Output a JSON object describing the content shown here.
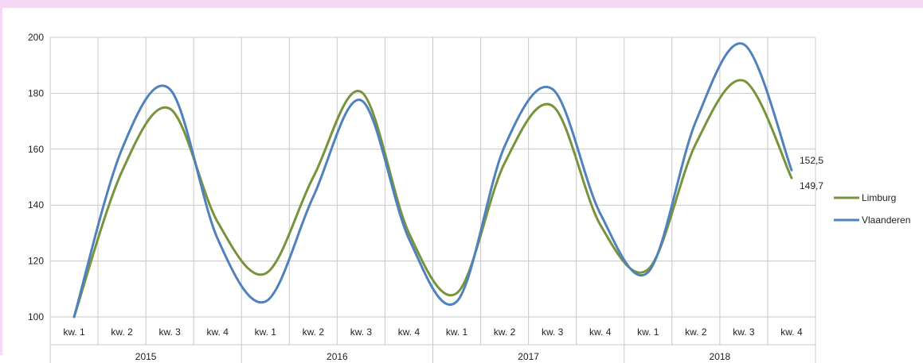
{
  "chart_data": {
    "type": "line",
    "title": "",
    "xlabel": "",
    "ylabel": "",
    "ylim": [
      100,
      200
    ],
    "yticks": [
      100,
      120,
      140,
      160,
      180,
      200
    ],
    "grid": true,
    "legend_position": "right",
    "categories": [
      "kw. 1",
      "kw. 2",
      "kw. 3",
      "kw. 4",
      "kw. 1",
      "kw. 2",
      "kw. 3",
      "kw. 4",
      "kw. 1",
      "kw. 2",
      "kw. 3",
      "kw. 4",
      "kw. 1",
      "kw. 2",
      "kw. 3",
      "kw. 4"
    ],
    "groups": [
      {
        "label": "2015",
        "span": 4
      },
      {
        "label": "2016",
        "span": 4
      },
      {
        "label": "2017",
        "span": 4
      },
      {
        "label": "2018",
        "span": 4
      }
    ],
    "series": [
      {
        "name": "Limburg",
        "color": "#77933c",
        "values": [
          100,
          152,
          174.5,
          134,
          115.5,
          150,
          180.5,
          130,
          108.5,
          155,
          175.5,
          133,
          117,
          162,
          184.5,
          149.7
        ],
        "end_label": "149,7"
      },
      {
        "name": "Vlaanderen",
        "color": "#4f81bd",
        "values": [
          100,
          160,
          181.5,
          128,
          105.5,
          143,
          177.5,
          128,
          105.5,
          161,
          181.5,
          137,
          116,
          170,
          197.5,
          152.5
        ],
        "end_label": "152,5"
      }
    ]
  }
}
